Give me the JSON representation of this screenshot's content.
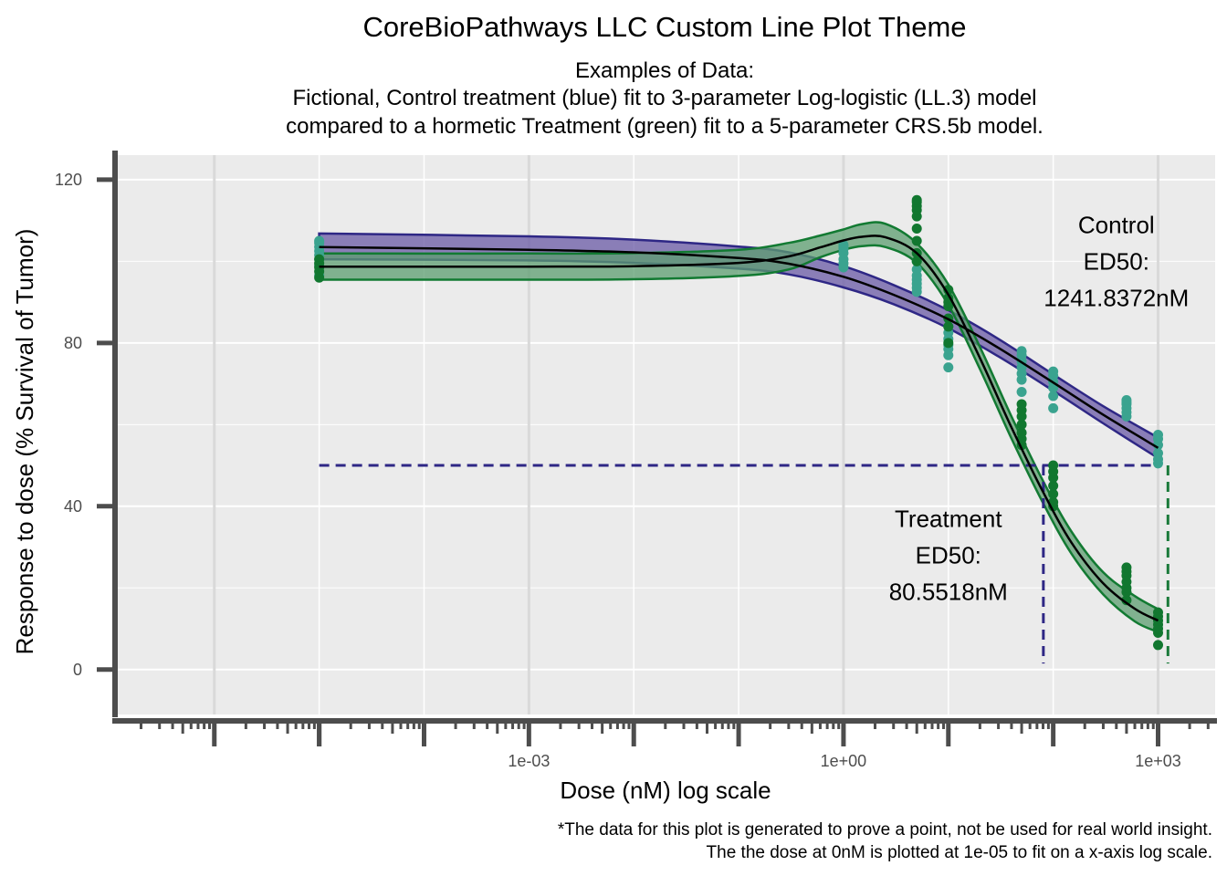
{
  "chart_data": {
    "type": "line",
    "title": "CoreBioPathways LLC Custom Line Plot Theme",
    "subtitle": [
      "Examples of Data:",
      "Fictional, Control treatment (blue) fit to 3-parameter Log-logistic (LL.3) model",
      "compared to a hormetic Treatment (green) fit to a 5-parameter CRS.5b model."
    ],
    "xlabel": "Dose (nM) log scale",
    "ylabel": "Response to dose (% Survival of Tumor)",
    "caption": [
      "*The data for this plot is generated to prove a point, not be used for real world insight.",
      "The the dose at 0nM is plotted at 1e-05 to fit on a x-axis log scale."
    ],
    "x_scale": "log10",
    "xlim": [
      1.2e-07,
      3500
    ],
    "ylim": [
      -11,
      126
    ],
    "x_ticks": [
      {
        "value": 0.001,
        "label": "1e-03"
      },
      {
        "value": 1,
        "label": "1e+00"
      },
      {
        "value": 1000,
        "label": "1e+03"
      }
    ],
    "y_ticks": [
      {
        "value": 0,
        "label": "0"
      },
      {
        "value": 40,
        "label": "40"
      },
      {
        "value": 80,
        "label": "80"
      },
      {
        "value": 120,
        "label": "120"
      }
    ],
    "grid": true,
    "colors": {
      "control_points": "#3aa38f",
      "treatment_points": "#11772f",
      "control_band": "#6a5aa6",
      "control_band_edge": "#2e2785",
      "treatment_band": "#5c9e70",
      "treatment_band_edge": "#127a32",
      "fit_line": "#000000",
      "panel_bg": "#ebebeb",
      "axis": "#4d4d4d"
    },
    "series": [
      {
        "name": "Control",
        "kind": "points",
        "points": [
          {
            "dose": 1e-05,
            "y": [
              96.5,
              99,
              100.5,
              101.5,
              102.5,
              103.5,
              104.5,
              105
            ]
          },
          {
            "dose": 1,
            "y": [
              98.5,
              99.5,
              100.5,
              102,
              103,
              103.5,
              104
            ]
          },
          {
            "dose": 5,
            "y": [
              92.5,
              93.5,
              94.5,
              95.5,
              96.5,
              98,
              100
            ]
          },
          {
            "dose": 10,
            "y": [
              74,
              77,
              78.5,
              79.5,
              81,
              82.5,
              84
            ]
          },
          {
            "dose": 50,
            "y": [
              68,
              71,
              72.5,
              74,
              75.5,
              77,
              78
            ]
          },
          {
            "dose": 100,
            "y": [
              64,
              67,
              69,
              70.5,
              72,
              73
            ]
          },
          {
            "dose": 500,
            "y": [
              62,
              63,
              64,
              65,
              65.5,
              66
            ]
          },
          {
            "dose": 1000,
            "y": [
              50.5,
              51.5,
              53,
              55,
              56.5,
              57.5
            ]
          }
        ]
      },
      {
        "name": "Treatment",
        "kind": "points",
        "points": [
          {
            "dose": 1e-05,
            "y": [
              96,
              97.5,
              98.5,
              99.5,
              100.5
            ]
          },
          {
            "dose": 5,
            "y": [
              100,
              102,
              105,
              108,
              111,
              112.5,
              113.5,
              114.5,
              115
            ]
          },
          {
            "dose": 10,
            "y": [
              80,
              84,
              86,
              89,
              90,
              91,
              93
            ]
          },
          {
            "dose": 50,
            "y": [
              55,
              56.5,
              58,
              60,
              62,
              63.5,
              65
            ]
          },
          {
            "dose": 100,
            "y": [
              40,
              41,
              43,
              45,
              47,
              48.5,
              50
            ]
          },
          {
            "dose": 500,
            "y": [
              17,
              19,
              20,
              21.5,
              23,
              24,
              25
            ]
          },
          {
            "dose": 1000,
            "y": [
              6,
              9,
              10,
              11,
              12,
              13,
              14
            ]
          }
        ]
      },
      {
        "name": "Control",
        "kind": "fit",
        "model": "LL.3",
        "dose": [
          1e-05,
          0.001,
          0.01,
          0.1,
          0.3,
          1,
          3,
          10,
          30,
          100,
          300,
          1000
        ],
        "y": [
          103.5,
          102.8,
          102.2,
          100.8,
          99.4,
          96.2,
          91.8,
          85.8,
          78.8,
          70.3,
          62.4,
          54.3
        ],
        "lower": [
          100.5,
          100.2,
          99.6,
          98.2,
          96.8,
          93.6,
          89.5,
          83.6,
          76.7,
          68.3,
          60.3,
          51.8
        ],
        "upper": [
          106.8,
          106.1,
          105.3,
          103.6,
          102.2,
          98.8,
          94.2,
          88.0,
          81.0,
          72.3,
          64.5,
          56.8
        ]
      },
      {
        "name": "Treatment",
        "kind": "fit",
        "model": "CRS.5b",
        "dose": [
          1e-05,
          0.001,
          0.01,
          0.1,
          0.3,
          0.6,
          1,
          1.5,
          2.5,
          5,
          10,
          20,
          40,
          80,
          150,
          300,
          600,
          1000
        ],
        "y": [
          98.7,
          98.7,
          98.8,
          99.6,
          101.2,
          103.4,
          105.1,
          106.0,
          105.9,
          102.0,
          91.8,
          76.3,
          59.3,
          43.5,
          31.0,
          21.1,
          14.9,
          12.0
        ],
        "lower": [
          95.5,
          95.5,
          95.6,
          96.4,
          98.0,
          101.0,
          102.8,
          103.7,
          103.5,
          99.6,
          89.3,
          73.6,
          56.6,
          40.8,
          28.3,
          18.4,
          11.8,
          9.2
        ],
        "upper": [
          101.9,
          101.9,
          102.0,
          102.8,
          104.5,
          106.3,
          107.8,
          109.1,
          109.2,
          104.4,
          94.3,
          79.0,
          62.0,
          46.2,
          33.7,
          23.8,
          18.0,
          14.8
        ]
      }
    ],
    "reference_lines": [
      {
        "type": "horizontal",
        "y": 50,
        "x_from": 1e-05,
        "x_to": 1000,
        "color": "#2e2785",
        "style": "dashed"
      },
      {
        "type": "vertical",
        "x": 80.5518,
        "y_from": 1.5,
        "y_to": 50,
        "color": "#2e2785",
        "style": "dashed"
      },
      {
        "type": "vertical",
        "x": 1241.8372,
        "y_from": 1.5,
        "y_to": 50,
        "color": "#1a7a3a",
        "style": "dashed"
      }
    ],
    "annotations": [
      {
        "lines": [
          "Control",
          "ED50:",
          "1241.8372nM"
        ],
        "x": 400,
        "y": 100,
        "dy": -1
      },
      {
        "lines": [
          "Treatment",
          "ED50:",
          "80.5518nM"
        ],
        "x": 10,
        "y": 28,
        "dy": 1
      }
    ]
  }
}
